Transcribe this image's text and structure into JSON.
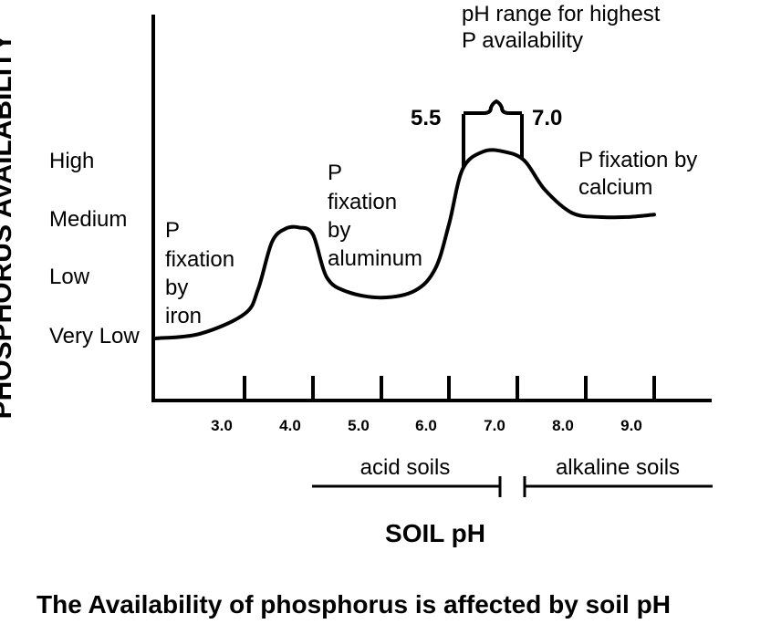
{
  "chart_data": {
    "type": "line",
    "title": "The Availability of phosphorus is affected by soil pH",
    "xlabel": "SOIL pH",
    "ylabel": "PHOSPHORUS AVAILABILITY",
    "y_levels": [
      "Very Low",
      "Low",
      "Medium",
      "High"
    ],
    "x_ticks": [
      {
        "value": 3.0,
        "label": "3.0"
      },
      {
        "value": 4.0,
        "label": "4.0"
      },
      {
        "value": 5.0,
        "label": "5.0"
      },
      {
        "value": 6.0,
        "label": "6.0"
      },
      {
        "value": 7.0,
        "label": "7.0"
      },
      {
        "value": 8.0,
        "label": "8.0"
      },
      {
        "value": 9.0,
        "label": "9.0"
      }
    ],
    "series": [
      {
        "x": [
          2.0,
          2.5,
          3.0,
          3.2,
          3.4,
          3.6,
          3.8,
          4.0,
          4.2,
          4.5,
          5.0,
          5.5,
          5.8,
          6.0,
          6.2,
          6.5,
          6.8,
          7.1,
          7.4,
          7.8,
          8.2,
          8.6,
          9.0
        ],
        "y": [
          0.0,
          0.08,
          0.42,
          0.85,
          1.65,
          1.88,
          1.9,
          1.78,
          1.05,
          0.8,
          0.7,
          0.82,
          1.2,
          1.95,
          2.9,
          3.2,
          3.2,
          3.05,
          2.55,
          2.15,
          2.08,
          2.08,
          2.12
        ]
      }
    ],
    "annotations": {
      "iron": [
        "P",
        "fixation",
        "by",
        "iron"
      ],
      "aluminum": [
        "P",
        "fixation",
        "by",
        "aluminum"
      ],
      "calcium": [
        "P  fixation by",
        "calcium"
      ],
      "peak": [
        "pH range for highest",
        "P availability"
      ],
      "range_low": "5.5",
      "range_high": "7.0"
    },
    "soil_classes": {
      "acid": "acid soils",
      "alkaline": "alkaline soils"
    }
  }
}
